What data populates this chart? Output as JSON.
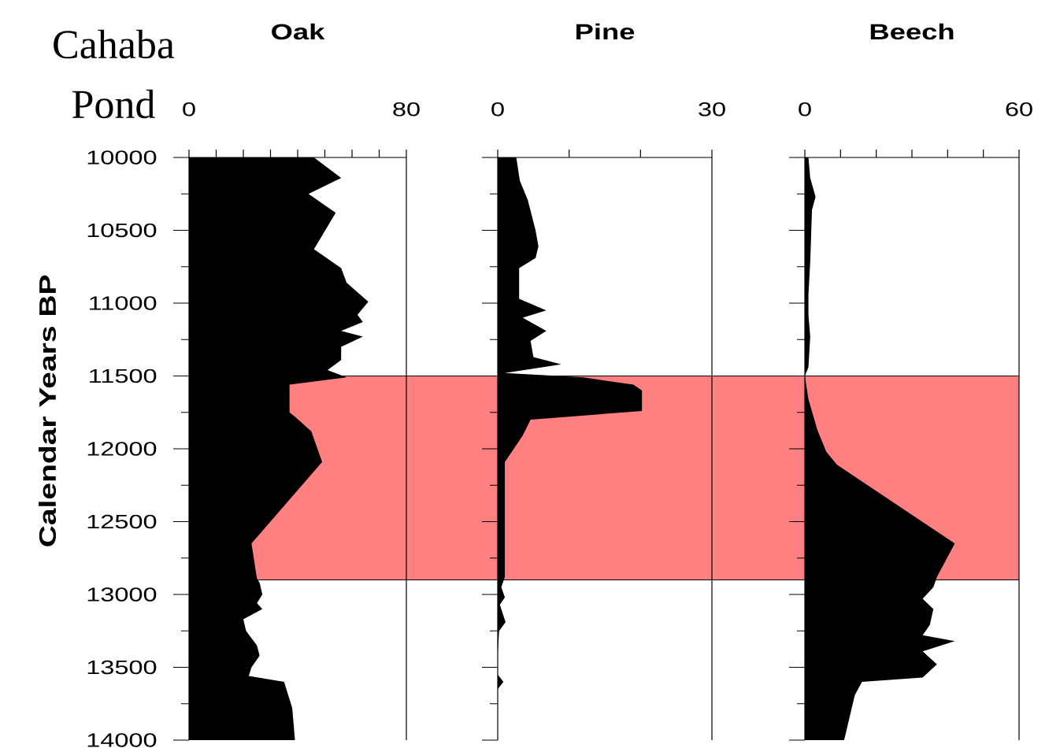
{
  "chart_data": [
    {
      "type": "area",
      "orientation": "horizontal",
      "title": "Oak",
      "ylabel": "Calendar Years BP",
      "annotations": [
        "Cahaba Pond"
      ],
      "color": "#000000",
      "x": [
        10000,
        10140,
        10250,
        10380,
        10630,
        10760,
        10860,
        10990,
        11080,
        11130,
        11190,
        11230,
        11300,
        11390,
        11460,
        11510,
        11560,
        11750,
        11780,
        11880,
        12090,
        12650,
        12890,
        12920,
        13000,
        13060,
        13100,
        13170,
        13250,
        13350,
        13420,
        13500,
        13560,
        13600,
        13780,
        14000
      ],
      "values": [
        46,
        56,
        44,
        54,
        46,
        56,
        58,
        66,
        62,
        64,
        56,
        64,
        56,
        56,
        51,
        58,
        37,
        37,
        39,
        45,
        49,
        23,
        25,
        26,
        27,
        25,
        27,
        20,
        21,
        25,
        26,
        23,
        22,
        35,
        38,
        39
      ],
      "xlim": [
        0,
        80
      ],
      "xticks": [
        0,
        {
          "value": 10,
          "label": null
        },
        {
          "value": 20,
          "label": null
        },
        {
          "value": 30,
          "label": null
        },
        {
          "value": 40,
          "label": null
        },
        {
          "value": 50,
          "label": null
        },
        {
          "value": 60,
          "label": null
        },
        {
          "value": 70,
          "label": null
        },
        80
      ],
      "ylim": [
        14000,
        10000
      ],
      "yticks": [
        10000,
        {
          "value": 10250,
          "label": null
        },
        10500,
        {
          "value": 10750,
          "label": null
        },
        11000,
        {
          "value": 11250,
          "label": null
        },
        11500,
        {
          "value": 11750,
          "label": null
        },
        12000,
        {
          "value": 12250,
          "label": null
        },
        12500,
        {
          "value": 12750,
          "label": null
        },
        13000,
        {
          "value": 13250,
          "label": null
        },
        13500,
        {
          "value": 13750,
          "label": null
        },
        14000
      ],
      "bands": [
        {
          "axis": "y",
          "from": 11500,
          "to": 12900,
          "color": "#ff8080"
        }
      ]
    },
    {
      "type": "area",
      "orientation": "horizontal",
      "title": "Pine",
      "color": "#000000",
      "tick_labels": "x",
      "x": [
        10000,
        10160,
        10290,
        10500,
        10610,
        10690,
        10760,
        10970,
        11050,
        11100,
        11190,
        11260,
        11370,
        11420,
        11480,
        11510,
        11560,
        11600,
        11740,
        11800,
        11910,
        12090,
        12880,
        12950,
        13020,
        13070,
        13190,
        13250,
        13400,
        13550,
        13600,
        13650,
        14000
      ],
      "values": [
        2.6,
        3.1,
        4.2,
        5.3,
        5.7,
        5.3,
        3,
        3,
        6.8,
        3.5,
        6.8,
        4.6,
        5,
        8.9,
        1,
        12,
        19,
        20.2,
        20.2,
        4.6,
        3.5,
        1,
        1,
        0.5,
        1,
        0.3,
        1.1,
        0.2,
        0,
        0,
        0.8,
        0,
        0
      ],
      "xlim": [
        0,
        30
      ],
      "xticks": [
        0,
        {
          "value": 10,
          "label": null
        },
        {
          "value": 20,
          "label": null
        },
        30
      ],
      "ylim": [
        14000,
        10000
      ],
      "yticks": [
        10000,
        {
          "value": 10250,
          "label": null
        },
        10500,
        {
          "value": 10750,
          "label": null
        },
        11000,
        {
          "value": 11250,
          "label": null
        },
        11500,
        {
          "value": 11750,
          "label": null
        },
        12000,
        {
          "value": 12250,
          "label": null
        },
        12500,
        {
          "value": 12750,
          "label": null
        },
        13000,
        {
          "value": 13250,
          "label": null
        },
        13500,
        {
          "value": 13750,
          "label": null
        },
        14000
      ],
      "bands": [
        {
          "axis": "y",
          "from": 11500,
          "to": 12900,
          "color": "#ff8080"
        }
      ]
    },
    {
      "type": "area",
      "orientation": "horizontal",
      "title": "Beech",
      "color": "#000000",
      "tick_labels": "x",
      "x": [
        10000,
        10140,
        10270,
        10360,
        10720,
        10940,
        11080,
        11230,
        11440,
        11500,
        11660,
        11870,
        12020,
        12110,
        12650,
        12880,
        12950,
        13030,
        13100,
        13210,
        13280,
        13320,
        13390,
        13480,
        13570,
        13600,
        13690,
        14000
      ],
      "values": [
        1,
        1.5,
        3,
        2,
        1.5,
        1,
        1,
        1.5,
        1,
        0,
        1,
        3.5,
        6,
        9,
        42,
        37,
        36,
        33,
        36,
        35,
        33,
        42,
        33,
        37,
        33,
        16,
        14,
        11
      ],
      "xlim": [
        0,
        60
      ],
      "xticks": [
        0,
        {
          "value": 10,
          "label": null
        },
        {
          "value": 20,
          "label": null
        },
        {
          "value": 30,
          "label": null
        },
        {
          "value": 40,
          "label": null
        },
        {
          "value": 50,
          "label": null
        },
        60
      ],
      "ylim": [
        14000,
        10000
      ],
      "yticks": [
        10000,
        {
          "value": 10250,
          "label": null
        },
        10500,
        {
          "value": 10750,
          "label": null
        },
        11000,
        {
          "value": 11250,
          "label": null
        },
        11500,
        {
          "value": 11750,
          "label": null
        },
        12000,
        {
          "value": 12250,
          "label": null
        },
        12500,
        {
          "value": 12750,
          "label": null
        },
        13000,
        {
          "value": 13250,
          "label": null
        },
        13500,
        {
          "value": 13750,
          "label": null
        },
        14000
      ],
      "bands": [
        {
          "axis": "y",
          "from": 11500,
          "to": 12900,
          "color": "#ff8080"
        }
      ]
    }
  ]
}
